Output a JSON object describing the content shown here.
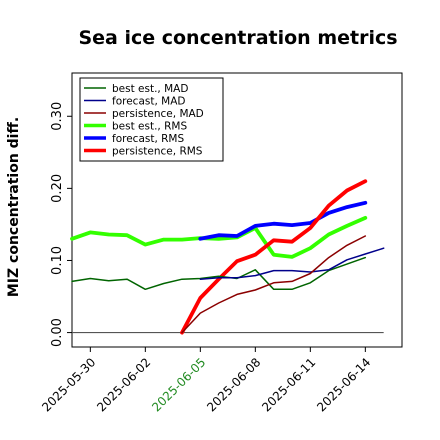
{
  "chart_data": {
    "type": "line",
    "title": "Sea ice concentration metrics",
    "xlabel": "",
    "ylabel": "MIZ concentration diff.",
    "ylim": [
      -0.02,
      0.36
    ],
    "yticks": [
      "0.00",
      "0.10",
      "0.20",
      "0.30"
    ],
    "ytick_values": [
      0.0,
      0.1,
      0.2,
      0.3
    ],
    "xlim": [
      "2025-05-29",
      "2025-06-16"
    ],
    "xticks": [
      "2025-05-30",
      "2025-06-02",
      "2025-06-05",
      "2025-06-08",
      "2025-06-11",
      "2025-06-14"
    ],
    "xtick_colors": [
      "#000000",
      "#000000",
      "#228b22",
      "#000000",
      "#000000",
      "#000000"
    ],
    "grid": false,
    "legend_position": "upper-left",
    "reference_line": {
      "value": 0.0,
      "x_from": "2025-05-29",
      "x_to": "2025-06-15",
      "color": "#555555"
    },
    "series": [
      {
        "name": "best est., MAD",
        "color": "#006400",
        "width": 1.5,
        "x": [
          "2025-05-29",
          "2025-05-30",
          "2025-05-31",
          "2025-06-01",
          "2025-06-02",
          "2025-06-03",
          "2025-06-04",
          "2025-06-05",
          "2025-06-06",
          "2025-06-07",
          "2025-06-08",
          "2025-06-09",
          "2025-06-10",
          "2025-06-11",
          "2025-06-12",
          "2025-06-13",
          "2025-06-14",
          "2025-06-15"
        ],
        "y": [
          0.071,
          0.075,
          0.072,
          0.074,
          0.06,
          0.068,
          0.074,
          0.075,
          0.078,
          0.075,
          0.087,
          0.06,
          0.06,
          0.069,
          0.086,
          0.095,
          0.104,
          null
        ]
      },
      {
        "name": "forecast,  MAD",
        "color": "#00008b",
        "width": 1.5,
        "x": [
          "2025-06-05",
          "2025-06-06",
          "2025-06-07",
          "2025-06-08",
          "2025-06-09",
          "2025-06-10",
          "2025-06-11",
          "2025-06-12",
          "2025-06-13",
          "2025-06-14",
          "2025-06-15"
        ],
        "y": [
          0.074,
          0.076,
          0.076,
          0.079,
          0.086,
          0.086,
          0.084,
          0.087,
          0.101,
          0.109,
          0.117
        ]
      },
      {
        "name": "persistence, MAD",
        "color": "#8b0000",
        "width": 1.5,
        "x": [
          "2025-06-04",
          "2025-06-05",
          "2025-06-06",
          "2025-06-07",
          "2025-06-08",
          "2025-06-09",
          "2025-06-10",
          "2025-06-11",
          "2025-06-12",
          "2025-06-13",
          "2025-06-14",
          "2025-06-15"
        ],
        "y": [
          0.0,
          0.027,
          0.041,
          0.053,
          0.059,
          0.069,
          0.071,
          0.082,
          0.104,
          0.121,
          0.134,
          null
        ]
      },
      {
        "name": "best est., RMS",
        "color": "#33ff00",
        "width": 3.8,
        "x": [
          "2025-05-29",
          "2025-05-30",
          "2025-05-31",
          "2025-06-01",
          "2025-06-02",
          "2025-06-03",
          "2025-06-04",
          "2025-06-05",
          "2025-06-06",
          "2025-06-07",
          "2025-06-08",
          "2025-06-09",
          "2025-06-10",
          "2025-06-11",
          "2025-06-12",
          "2025-06-13",
          "2025-06-14",
          "2025-06-15"
        ],
        "y": [
          0.13,
          0.139,
          0.136,
          0.135,
          0.122,
          0.129,
          0.129,
          0.131,
          0.13,
          0.132,
          0.145,
          0.108,
          0.105,
          0.117,
          0.136,
          0.148,
          0.159,
          null
        ]
      },
      {
        "name": "forecast,  RMS",
        "color": "#0000ff",
        "width": 3.8,
        "x": [
          "2025-06-05",
          "2025-06-06",
          "2025-06-07",
          "2025-06-08",
          "2025-06-09",
          "2025-06-10",
          "2025-06-11",
          "2025-06-12",
          "2025-06-13",
          "2025-06-14",
          "2025-06-15"
        ],
        "y": [
          0.13,
          0.135,
          0.134,
          0.148,
          0.151,
          0.149,
          0.152,
          0.166,
          0.174,
          0.18,
          null
        ]
      },
      {
        "name": "persistence, RMS",
        "color": "#ff0000",
        "width": 3.8,
        "x": [
          "2025-06-04",
          "2025-06-05",
          "2025-06-06",
          "2025-06-07",
          "2025-06-08",
          "2025-06-09",
          "2025-06-10",
          "2025-06-11",
          "2025-06-12",
          "2025-06-13",
          "2025-06-14",
          "2025-06-15"
        ],
        "y": [
          0.0,
          0.048,
          0.074,
          0.099,
          0.108,
          0.128,
          0.126,
          0.145,
          0.176,
          0.197,
          0.21,
          null
        ]
      }
    ]
  }
}
